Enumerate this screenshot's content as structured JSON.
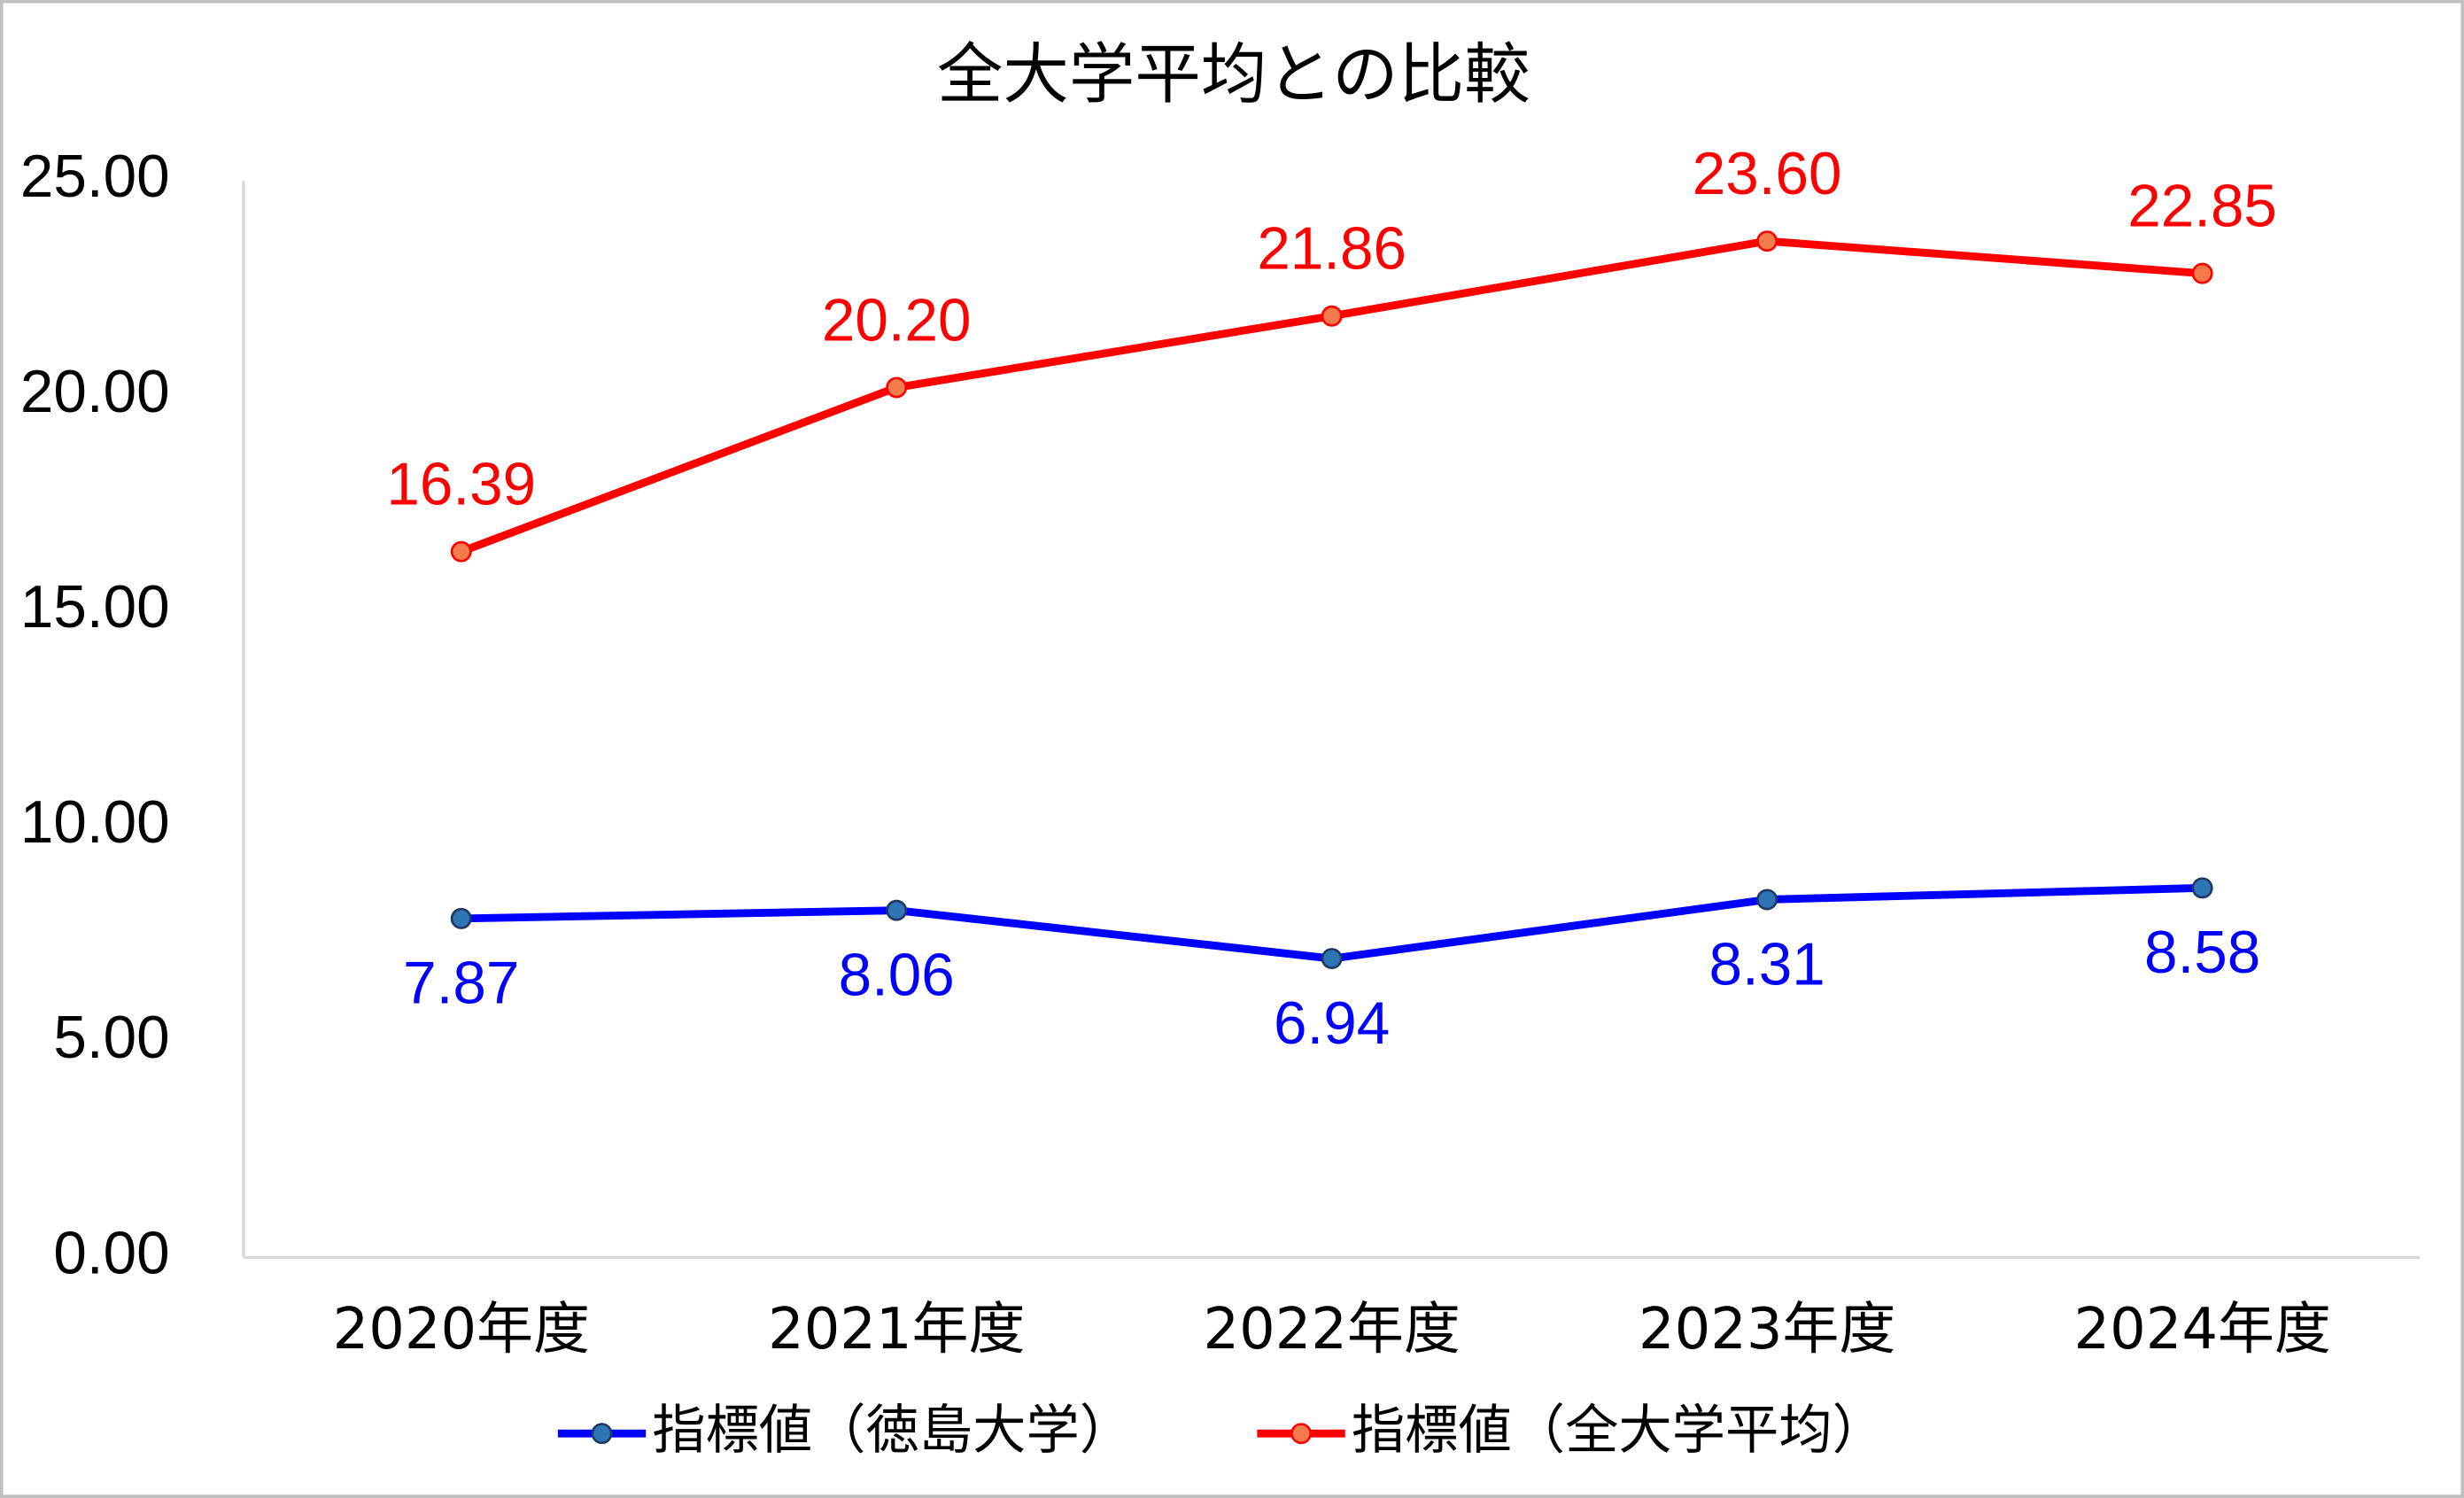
{
  "chart_data": {
    "type": "line",
    "title": "全大学平均との比較",
    "categories": [
      "2020年度",
      "2021年度",
      "2022年度",
      "2023年度",
      "2024年度"
    ],
    "series": [
      {
        "name": "指標値（徳島大学）",
        "color": "#0000ff",
        "marker_color": "#2e75b6",
        "values": [
          7.87,
          8.06,
          6.94,
          8.31,
          8.58
        ],
        "value_labels": [
          "7.87",
          "8.06",
          "6.94",
          "8.31",
          "8.58"
        ],
        "label_position": "below"
      },
      {
        "name": "指標値（全大学平均）",
        "color": "#ff0000",
        "marker_color": "#f47b4b",
        "values": [
          16.39,
          20.2,
          21.86,
          23.6,
          22.85
        ],
        "value_labels": [
          "16.39",
          "20.20",
          "21.86",
          "23.60",
          "22.85"
        ],
        "label_position": "above"
      }
    ],
    "ylim": [
      0,
      25
    ],
    "yticks": [
      {
        "value": 0,
        "label": "0.00"
      },
      {
        "value": 5,
        "label": "5.00"
      },
      {
        "value": 10,
        "label": "10.00"
      },
      {
        "value": 15,
        "label": "15.00"
      },
      {
        "value": 20,
        "label": "20.00"
      },
      {
        "value": 25,
        "label": "25.00"
      }
    ],
    "grid": false,
    "legend": "bottom"
  }
}
